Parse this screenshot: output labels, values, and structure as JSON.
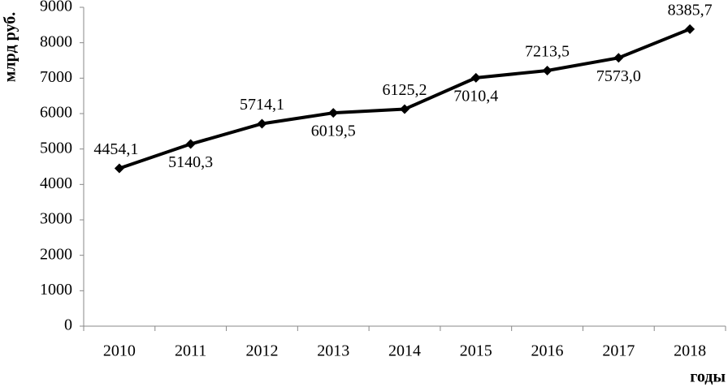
{
  "chart_data": {
    "type": "line",
    "y_label": "млрд руб.",
    "x_label": "годы",
    "categories": [
      "2010",
      "2011",
      "2012",
      "2013",
      "2014",
      "2015",
      "2016",
      "2017",
      "2018"
    ],
    "values": [
      4454.1,
      5140.3,
      5714.1,
      6019.5,
      6125.2,
      7010.4,
      7213.5,
      7573.0,
      8385.7
    ],
    "value_labels": [
      "4454,1",
      "5140,3",
      "5714,1",
      "6019,5",
      "6125,2",
      "7010,4",
      "7213,5",
      "7573,0",
      "8385,7"
    ],
    "color": "#000000",
    "ylim": [
      0,
      9000
    ],
    "yticks": [
      0,
      1000,
      2000,
      3000,
      4000,
      5000,
      6000,
      7000,
      8000,
      9000
    ]
  }
}
